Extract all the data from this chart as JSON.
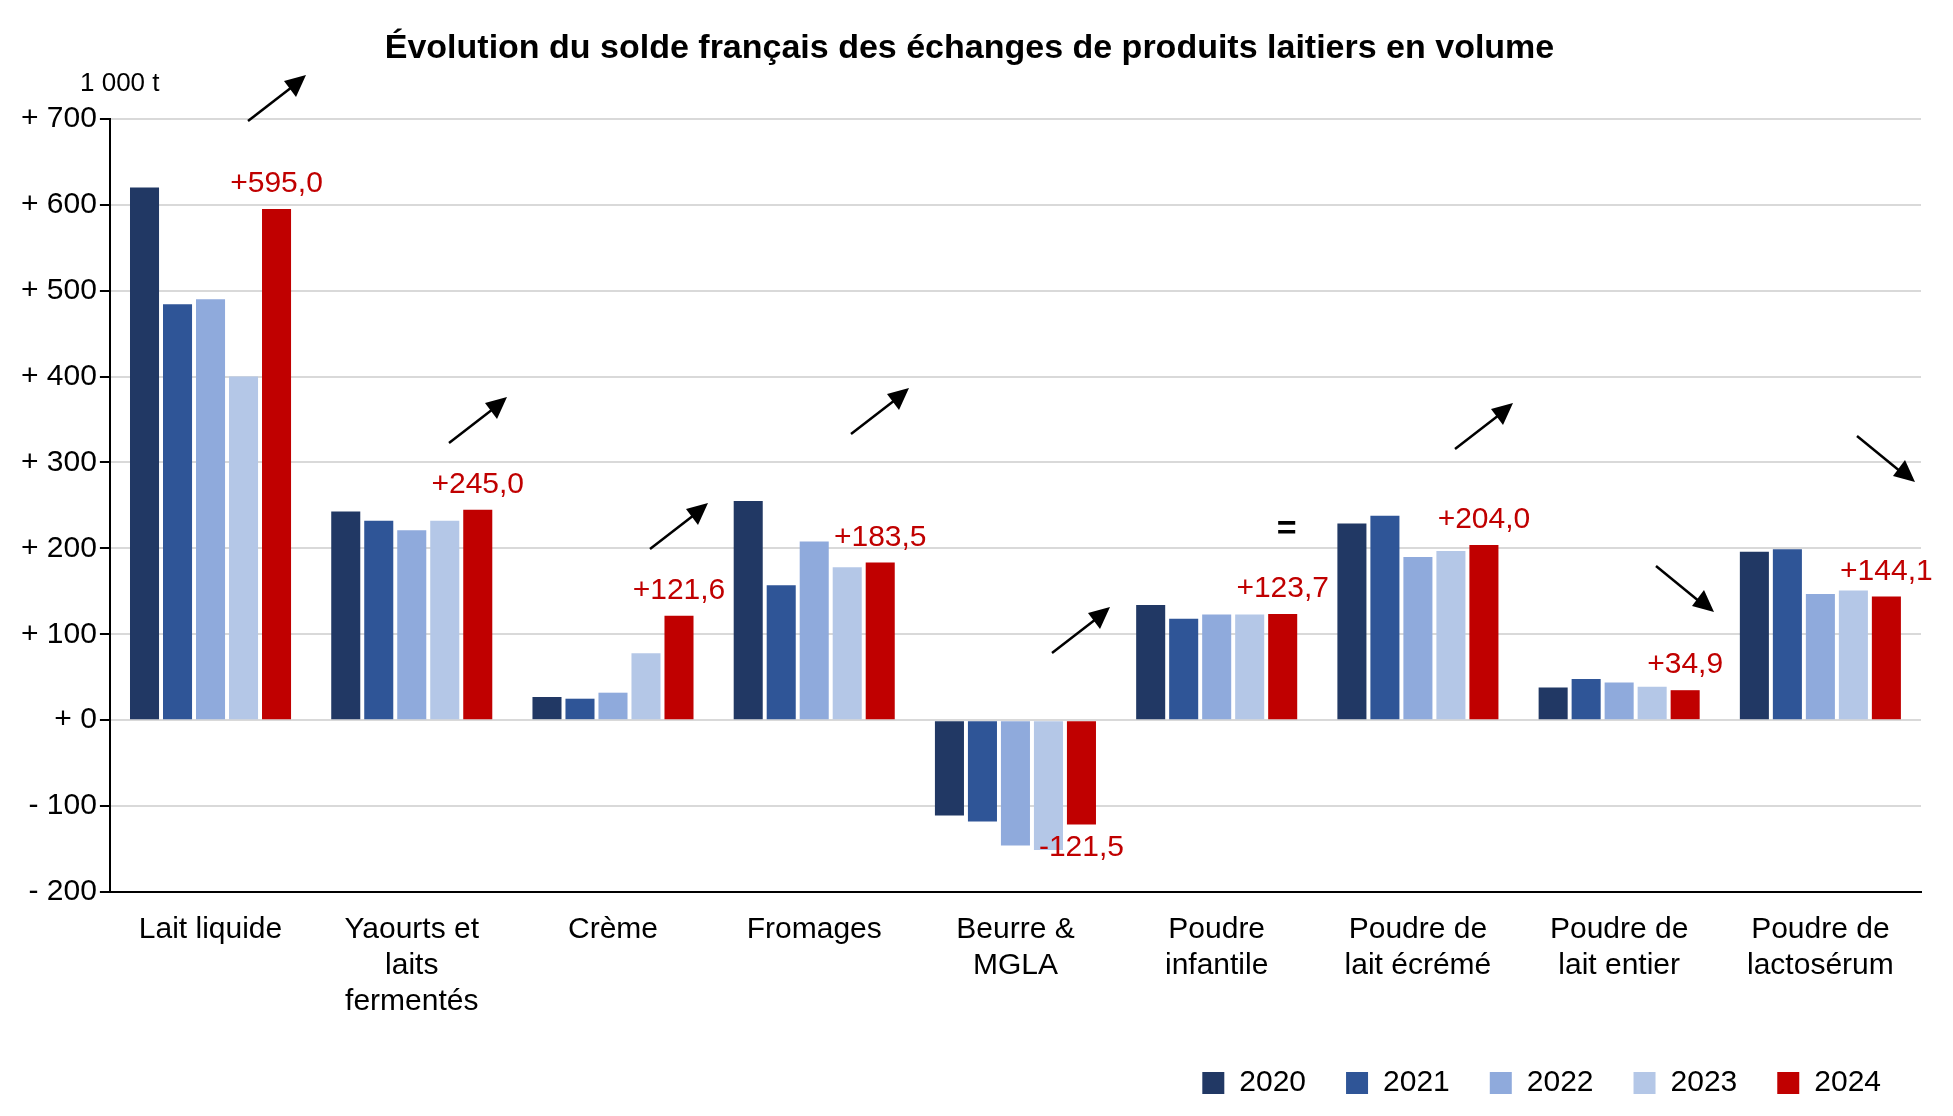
{
  "chart_data": {
    "type": "bar",
    "title": "Évolution du solde français des échanges de produits laitiers en volume",
    "ylabel": "1 000 t",
    "categories": [
      "Lait liquide",
      "Yaourts et laits fermentés",
      "Crème",
      "Fromages",
      "Beurre & MGLA",
      "Poudre infantile",
      "Poudre de lait écrémé",
      "Poudre de lait entier",
      "Poudre de lactosérum"
    ],
    "series": [
      {
        "name": "2020",
        "color": "#213864",
        "values": [
          620,
          243,
          27,
          255,
          -111,
          134,
          229,
          38,
          196
        ]
      },
      {
        "name": "2021",
        "color": "#2f5597",
        "values": [
          484,
          232,
          25,
          157,
          -118,
          118,
          238,
          48,
          199
        ]
      },
      {
        "name": "2022",
        "color": "#8faadc",
        "values": [
          490,
          221,
          32,
          208,
          -146,
          123,
          190,
          44,
          147
        ]
      },
      {
        "name": "2023",
        "color": "#b4c7e7",
        "values": [
          400,
          232,
          78,
          178,
          -151,
          123,
          197,
          39,
          151
        ]
      },
      {
        "name": "2024",
        "color": "#c00000",
        "values": [
          595,
          245,
          121.6,
          183.5,
          -121.5,
          123.7,
          204,
          34.9,
          144.1
        ],
        "value_labels": [
          "+595,0",
          "+245,0",
          "+121,6",
          "+183,5",
          "-121,5",
          "+123,7",
          "+204,0",
          "+34,9",
          "+144,1"
        ]
      }
    ],
    "ylim": [
      -200,
      700
    ],
    "yticks": [
      {
        "value": -200,
        "label": "- 200"
      },
      {
        "value": -100,
        "label": "- 100"
      },
      {
        "value": 0,
        "label": "+ 0"
      },
      {
        "value": 100,
        "label": "+ 100"
      },
      {
        "value": 200,
        "label": "+ 200"
      },
      {
        "value": 300,
        "label": "+ 300"
      },
      {
        "value": 400,
        "label": "+ 400"
      },
      {
        "value": 500,
        "label": "+ 500"
      },
      {
        "value": 600,
        "label": "+ 600"
      },
      {
        "value": 700,
        "label": "+ 700"
      }
    ],
    "grid": "y",
    "legend": "bottom right",
    "annotations": [
      "="
    ]
  }
}
